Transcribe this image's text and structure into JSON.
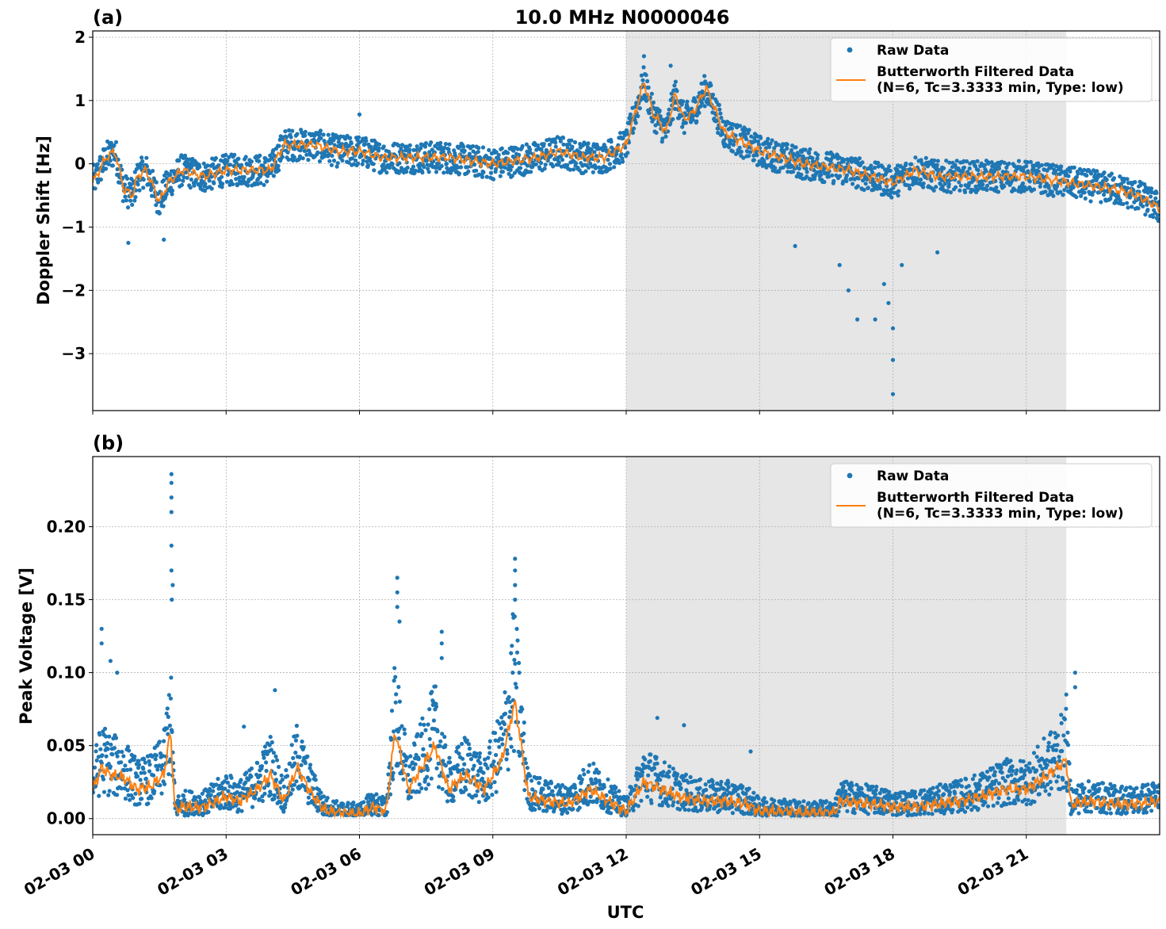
{
  "figure": {
    "title": "10.0 MHz N0000046"
  },
  "colors": {
    "raw": "#1f77b4",
    "filtered": "#ff7f0e",
    "shade": "#e6e6e6",
    "grid": "#b0b0b0"
  },
  "chart_data": [
    {
      "type": "scatter",
      "panel_label": "(a)",
      "title": "10.0 MHz N0000046",
      "xlabel": "",
      "ylabel": "Doppler Shift [Hz]",
      "x_unit": "hours UTC on 02-03",
      "xlim": [
        0,
        24
      ],
      "ylim": [
        -3.9,
        2.1
      ],
      "yticks": [
        2,
        1,
        0,
        -1,
        -2,
        -3
      ],
      "ytick_labels": [
        "2",
        "1",
        "0",
        "−1",
        "−2",
        "−3"
      ],
      "grid": true,
      "legend_position": "top-right",
      "shaded_region": [
        12,
        21.9
      ],
      "series": [
        {
          "name": "Raw Data",
          "style": "points",
          "spread": 0.25,
          "x": [
            0,
            0.3,
            0.5,
            0.7,
            0.9,
            1.0,
            1.2,
            1.5,
            1.7,
            2.0,
            2.5,
            3.0,
            3.5,
            4.0,
            4.3,
            4.6,
            5.0,
            5.5,
            6.0,
            6.5,
            7.0,
            8.0,
            9.0,
            10.0,
            10.5,
            11.0,
            11.5,
            12.0,
            12.2,
            12.4,
            12.6,
            12.9,
            13.1,
            13.3,
            13.5,
            13.8,
            14.2,
            15.0,
            16.0,
            17.0,
            17.5,
            18.0,
            18.5,
            19.0,
            20.0,
            21.0,
            22.0,
            23.0,
            23.5,
            24.0
          ],
          "y": [
            -0.3,
            0.1,
            0.2,
            -0.4,
            -0.5,
            -0.2,
            -0.1,
            -0.6,
            -0.3,
            -0.1,
            -0.2,
            -0.1,
            -0.1,
            -0.1,
            0.3,
            0.3,
            0.3,
            0.2,
            0.2,
            0.1,
            0.1,
            0.1,
            0.0,
            0.1,
            0.2,
            0.1,
            0.1,
            0.3,
            0.8,
            1.3,
            0.8,
            0.5,
            1.1,
            0.7,
            0.8,
            1.2,
            0.5,
            0.2,
            0.0,
            -0.1,
            -0.2,
            -0.3,
            -0.1,
            -0.2,
            -0.2,
            -0.2,
            -0.3,
            -0.4,
            -0.5,
            -0.7
          ]
        },
        {
          "name": "Butterworth Filtered Data\n(N=6, Tc=3.3333 min, Type: low)",
          "style": "line",
          "x": [
            0,
            0.3,
            0.5,
            0.7,
            0.9,
            1.0,
            1.2,
            1.5,
            1.7,
            2.0,
            2.5,
            3.0,
            3.5,
            4.0,
            4.3,
            4.6,
            5.0,
            5.5,
            6.0,
            6.5,
            7.0,
            8.0,
            9.0,
            10.0,
            10.5,
            11.0,
            11.5,
            12.0,
            12.2,
            12.4,
            12.6,
            12.9,
            13.1,
            13.3,
            13.5,
            13.8,
            14.2,
            15.0,
            16.0,
            17.0,
            17.5,
            18.0,
            18.5,
            19.0,
            20.0,
            21.0,
            22.0,
            23.0,
            23.5,
            24.0
          ],
          "y": [
            -0.3,
            0.1,
            0.2,
            -0.4,
            -0.5,
            -0.2,
            -0.1,
            -0.6,
            -0.3,
            -0.1,
            -0.2,
            -0.1,
            -0.1,
            -0.1,
            0.3,
            0.3,
            0.3,
            0.2,
            0.2,
            0.1,
            0.1,
            0.1,
            0.0,
            0.1,
            0.2,
            0.1,
            0.1,
            0.3,
            0.8,
            1.3,
            0.8,
            0.5,
            1.1,
            0.7,
            0.8,
            1.2,
            0.5,
            0.2,
            0.0,
            -0.1,
            -0.2,
            -0.3,
            -0.1,
            -0.2,
            -0.2,
            -0.2,
            -0.3,
            -0.4,
            -0.5,
            -0.7
          ]
        }
      ],
      "outliers": [
        [
          17.2,
          -2.46
        ],
        [
          17.6,
          -2.46
        ],
        [
          17.8,
          -1.9
        ],
        [
          18.0,
          -3.64
        ],
        [
          18.0,
          -3.1
        ],
        [
          18.0,
          -2.6
        ],
        [
          17.9,
          -2.2
        ],
        [
          17.0,
          -2.0
        ],
        [
          16.8,
          -1.6
        ],
        [
          18.2,
          -1.6
        ],
        [
          15.8,
          -1.3
        ],
        [
          19.0,
          -1.4
        ],
        [
          1.6,
          -1.2
        ],
        [
          0.8,
          -1.25
        ],
        [
          6.0,
          0.78
        ],
        [
          12.4,
          1.7
        ],
        [
          13.0,
          1.55
        ]
      ]
    },
    {
      "type": "scatter",
      "panel_label": "(b)",
      "title": "",
      "xlabel": "UTC",
      "ylabel": "Peak Voltage [V]",
      "x_unit": "hours UTC on 02-03",
      "xlim": [
        0,
        24
      ],
      "ylim": [
        -0.011,
        0.248
      ],
      "yticks": [
        0.0,
        0.05,
        0.1,
        0.15,
        0.2
      ],
      "ytick_labels": [
        "0.00",
        "0.05",
        "0.10",
        "0.15",
        "0.20"
      ],
      "xticks": [
        0,
        3,
        6,
        9,
        12,
        15,
        18,
        21
      ],
      "xtick_labels": [
        "02-03 00",
        "02-03 03",
        "02-03 06",
        "02-03 09",
        "02-03 12",
        "02-03 15",
        "02-03 18",
        "02-03 21"
      ],
      "grid": true,
      "legend_position": "top-right",
      "shaded_region": [
        12,
        21.9
      ],
      "series": [
        {
          "name": "Raw Data",
          "style": "points",
          "spread": 0.6,
          "x": [
            0,
            0.2,
            0.4,
            0.7,
            1.0,
            1.3,
            1.6,
            1.75,
            1.85,
            2.0,
            2.5,
            3.0,
            3.3,
            3.7,
            4.0,
            4.3,
            4.6,
            4.9,
            5.2,
            5.5,
            6.0,
            6.3,
            6.6,
            6.8,
            7.1,
            7.4,
            7.7,
            8.0,
            8.4,
            8.8,
            9.2,
            9.5,
            9.8,
            10.2,
            10.7,
            11.2,
            11.6,
            12.0,
            12.4,
            12.8,
            13.2,
            13.7,
            14.2,
            14.7,
            15.0,
            15.5,
            16.0,
            16.7,
            16.8,
            17.5,
            18.0,
            18.5,
            19.0,
            19.5,
            20.0,
            20.5,
            21.0,
            21.5,
            21.9,
            22.0,
            22.5,
            23.0,
            23.5,
            24.0
          ],
          "y": [
            0.02,
            0.035,
            0.03,
            0.028,
            0.02,
            0.022,
            0.03,
            0.06,
            0.005,
            0.008,
            0.008,
            0.015,
            0.012,
            0.02,
            0.03,
            0.012,
            0.035,
            0.018,
            0.006,
            0.004,
            0.003,
            0.008,
            0.005,
            0.06,
            0.02,
            0.035,
            0.05,
            0.02,
            0.03,
            0.02,
            0.04,
            0.08,
            0.015,
            0.012,
            0.01,
            0.02,
            0.012,
            0.005,
            0.025,
            0.02,
            0.015,
            0.012,
            0.012,
            0.01,
            0.005,
            0.005,
            0.004,
            0.004,
            0.012,
            0.01,
            0.008,
            0.008,
            0.01,
            0.012,
            0.015,
            0.02,
            0.02,
            0.03,
            0.04,
            0.01,
            0.012,
            0.01,
            0.01,
            0.012
          ]
        },
        {
          "name": "Butterworth Filtered Data\n(N=6, Tc=3.3333 min, Type: low)",
          "style": "line",
          "x": [
            0,
            0.2,
            0.4,
            0.7,
            1.0,
            1.3,
            1.6,
            1.75,
            1.85,
            2.0,
            2.5,
            3.0,
            3.3,
            3.7,
            4.0,
            4.3,
            4.6,
            4.9,
            5.2,
            5.5,
            6.0,
            6.3,
            6.6,
            6.8,
            7.1,
            7.4,
            7.7,
            8.0,
            8.4,
            8.8,
            9.2,
            9.5,
            9.8,
            10.2,
            10.7,
            11.2,
            11.6,
            12.0,
            12.4,
            12.8,
            13.2,
            13.7,
            14.2,
            14.7,
            15.0,
            15.5,
            16.0,
            16.7,
            16.8,
            17.5,
            18.0,
            18.5,
            19.0,
            19.5,
            20.0,
            20.5,
            21.0,
            21.5,
            21.9,
            22.0,
            22.5,
            23.0,
            23.5,
            24.0
          ],
          "y": [
            0.02,
            0.035,
            0.03,
            0.028,
            0.02,
            0.022,
            0.03,
            0.06,
            0.005,
            0.008,
            0.008,
            0.015,
            0.012,
            0.02,
            0.03,
            0.012,
            0.035,
            0.018,
            0.006,
            0.004,
            0.003,
            0.008,
            0.005,
            0.06,
            0.02,
            0.035,
            0.05,
            0.02,
            0.03,
            0.02,
            0.04,
            0.08,
            0.015,
            0.012,
            0.01,
            0.02,
            0.012,
            0.005,
            0.025,
            0.02,
            0.015,
            0.012,
            0.012,
            0.01,
            0.005,
            0.005,
            0.004,
            0.004,
            0.012,
            0.01,
            0.008,
            0.008,
            0.01,
            0.012,
            0.015,
            0.02,
            0.02,
            0.03,
            0.04,
            0.01,
            0.012,
            0.01,
            0.01,
            0.012
          ]
        }
      ],
      "outliers": [
        [
          1.77,
          0.236
        ],
        [
          1.77,
          0.23
        ],
        [
          1.77,
          0.22
        ],
        [
          1.77,
          0.21
        ],
        [
          1.77,
          0.187
        ],
        [
          1.77,
          0.17
        ],
        [
          1.8,
          0.16
        ],
        [
          1.78,
          0.15
        ],
        [
          9.5,
          0.178
        ],
        [
          9.5,
          0.17
        ],
        [
          9.5,
          0.16
        ],
        [
          9.5,
          0.15
        ],
        [
          9.45,
          0.14
        ],
        [
          6.85,
          0.165
        ],
        [
          6.85,
          0.155
        ],
        [
          6.85,
          0.145
        ],
        [
          6.9,
          0.135
        ],
        [
          7.85,
          0.128
        ],
        [
          7.85,
          0.12
        ],
        [
          7.85,
          0.11
        ],
        [
          0.2,
          0.13
        ],
        [
          0.2,
          0.12
        ],
        [
          0.4,
          0.108
        ],
        [
          0.55,
          0.1
        ],
        [
          4.1,
          0.088
        ],
        [
          22.1,
          0.1
        ],
        [
          22.1,
          0.09
        ],
        [
          21.9,
          0.085
        ],
        [
          3.4,
          0.063
        ],
        [
          12.7,
          0.069
        ],
        [
          13.3,
          0.064
        ],
        [
          14.8,
          0.046
        ]
      ]
    }
  ]
}
